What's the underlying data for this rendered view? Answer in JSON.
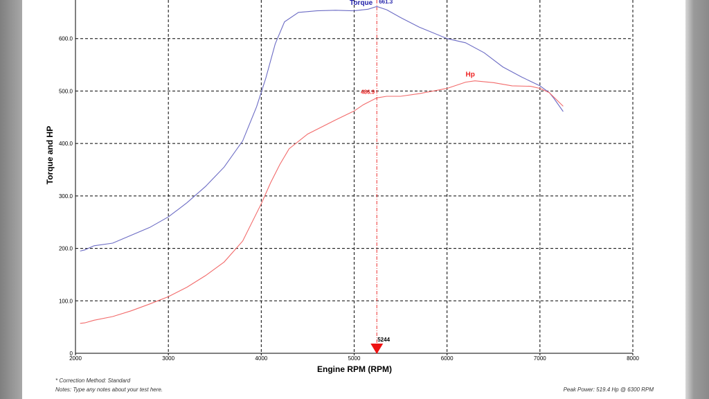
{
  "chart_data": {
    "type": "line",
    "xlabel": "Engine RPM (RPM)",
    "ylabel": "Torque and HP",
    "xlim": [
      2000,
      8000
    ],
    "ylim": [
      0,
      700
    ],
    "x_ticks": [
      "2000",
      "3000",
      "4000",
      "5000",
      "6000",
      "7000",
      "8000"
    ],
    "y_ticks": [
      "0",
      "100.0",
      "200.0",
      "300.0",
      "400.0",
      "500.0",
      "600.0"
    ],
    "grid": true,
    "series": [
      {
        "name": "Torque",
        "color": "#6b6bc4",
        "x": [
          2050,
          2100,
          2200,
          2400,
          2600,
          2800,
          3000,
          3200,
          3400,
          3600,
          3800,
          3950,
          4050,
          4150,
          4250,
          4400,
          4600,
          4800,
          5000,
          5150,
          5244,
          5350,
          5500,
          5700,
          6000,
          6200,
          6400,
          6600,
          6800,
          7000,
          7100,
          7150,
          7250
        ],
        "values": [
          195,
          197,
          205,
          210,
          225,
          240,
          260,
          287,
          318,
          355,
          405,
          470,
          525,
          590,
          632,
          650,
          653,
          654,
          653,
          656,
          661.3,
          655,
          640,
          622,
          600,
          592,
          573,
          546,
          527,
          510,
          497,
          486,
          461
        ]
      },
      {
        "name": "Hp",
        "color": "#f26a6a",
        "x": [
          2050,
          2100,
          2200,
          2400,
          2600,
          2800,
          3000,
          3200,
          3400,
          3600,
          3800,
          4000,
          4100,
          4200,
          4300,
          4500,
          4800,
          5000,
          5100,
          5244,
          5350,
          5500,
          5700,
          6000,
          6200,
          6300,
          6500,
          6700,
          6900,
          7000,
          7100,
          7250
        ],
        "values": [
          57,
          58,
          63,
          70,
          81,
          94,
          108,
          126,
          148,
          174,
          214,
          285,
          325,
          360,
          390,
          418,
          445,
          462,
          474,
          486.9,
          490,
          490,
          495,
          505,
          517,
          519.4,
          516,
          510,
          509,
          505,
          497,
          471
        ]
      }
    ],
    "annotations": {
      "torque_label": "Torque",
      "torque_peak": "661.3",
      "hp_label": "Hp",
      "hp_marker_value": "486.9",
      "marker_rpm": "5244",
      "marker_x": 5244
    }
  },
  "notes": {
    "correction": "* Correction Method: Standard",
    "notes_line": "Notes: Type any notes about your test here.",
    "peak_power": "Peak Power: 519.4 Hp @ 6300 RPM"
  }
}
